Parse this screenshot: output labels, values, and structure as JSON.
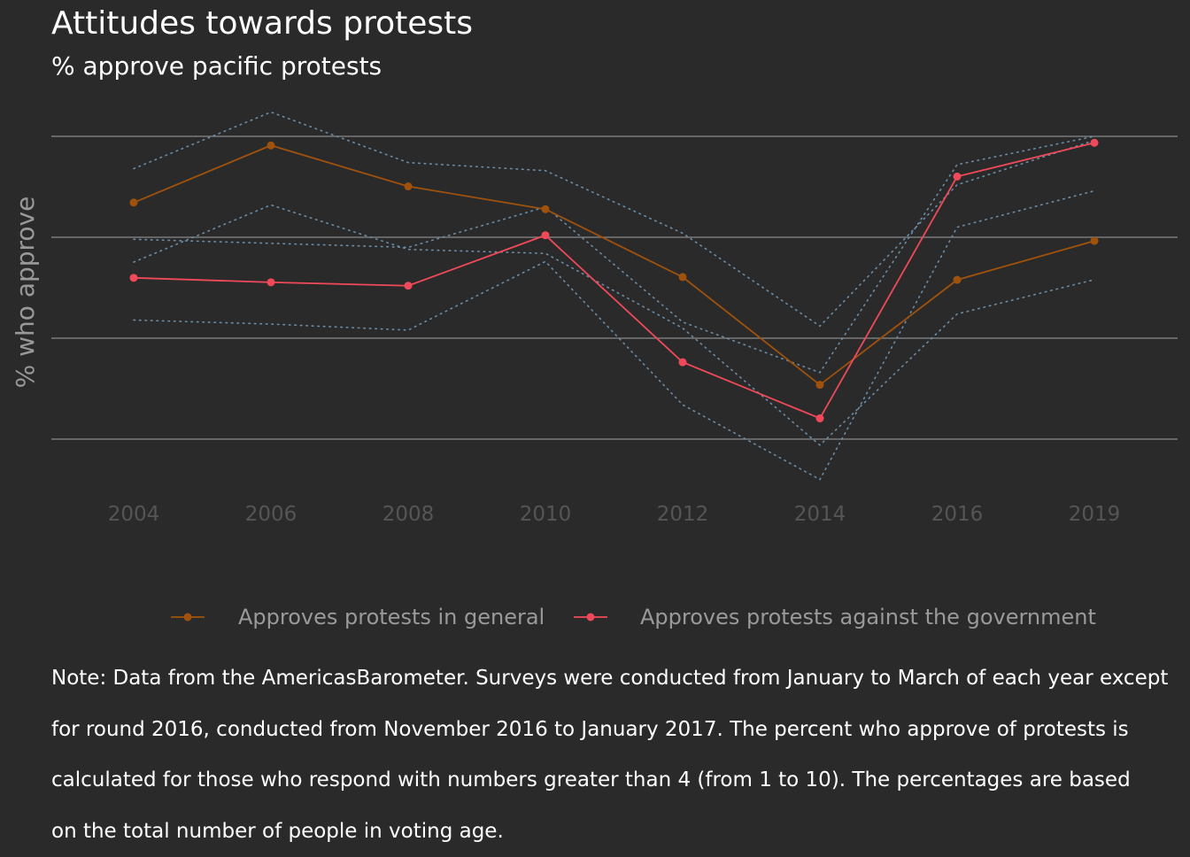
{
  "chart_data": {
    "type": "line",
    "title": "Attitudes towards protests",
    "subtitle": "% approve pacific protests",
    "ylabel": "% who approve",
    "xlabel": "",
    "categories": [
      "2004",
      "2006",
      "2008",
      "2010",
      "2012",
      "2014",
      "2016",
      "2019"
    ],
    "ylim": [
      0,
      1
    ],
    "grid": true,
    "show_y_tick_labels": false,
    "legend_position": "bottom",
    "series": [
      {
        "name": "Approves protests in general",
        "color": "#a0520d",
        "values": [
          0.672,
          0.955,
          0.752,
          0.639,
          0.303,
          -0.231,
          0.289,
          0.482
        ],
        "ci_low": [
          0.377,
          0.66,
          0.44,
          0.42,
          0.05,
          -0.53,
          0.12,
          0.29
        ],
        "ci_high": [
          0.84,
          1.12,
          0.87,
          0.83,
          0.52,
          0.06,
          0.76,
          0.98
        ]
      },
      {
        "name": "Approves protests against the government",
        "color": "#f04a5a",
        "values": [
          0.299,
          0.277,
          0.26,
          0.51,
          -0.119,
          -0.397,
          0.801,
          0.968
        ],
        "ci_low": [
          0.09,
          0.07,
          0.04,
          0.38,
          -0.33,
          -0.7,
          0.55,
          0.73
        ],
        "ci_high": [
          0.49,
          0.47,
          0.45,
          0.65,
          0.08,
          -0.17,
          0.86,
          1.0
        ]
      }
    ]
  },
  "note": {
    "lines": [
      "Note: Data from the AmericasBarometer. Surveys were conducted from January to March of each year except",
      "for round 2016, conducted from November 2016 to January 2017. The percent who approve of protests is",
      "calculated for those who respond with numbers greater than 4 (from 1 to 10). The percentages are based",
      "on the total number of people in voting age."
    ]
  },
  "colors": {
    "background": "#2a2a2a",
    "grid": "#7a7a7a",
    "axis_text": "#555555",
    "ylabel": "#999999",
    "legend_text": "#9a9a9a",
    "ci": "#6b8da8"
  }
}
